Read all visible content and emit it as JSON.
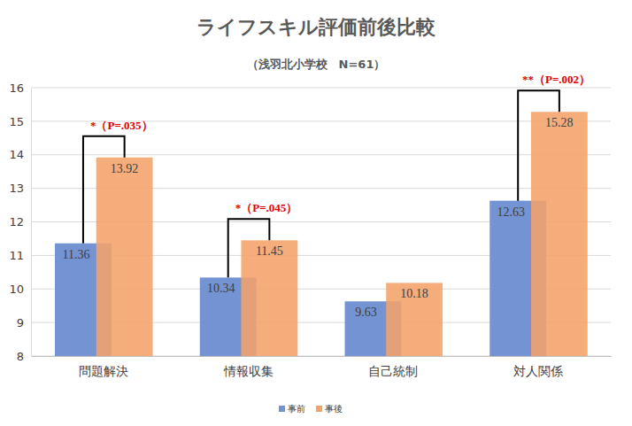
{
  "chart_data": {
    "type": "bar",
    "title": "ライフスキル評価前後比較",
    "subtitle": "（浅羽北小学校　N=61）",
    "categories": [
      "問題解決",
      "情報収集",
      "自己統制",
      "対人関係"
    ],
    "series": [
      {
        "name": "事前",
        "color": "#7393d3",
        "values": [
          11.36,
          10.34,
          9.63,
          12.63
        ]
      },
      {
        "name": "事後",
        "color": "#f4a26a",
        "values": [
          13.92,
          11.45,
          10.18,
          15.28
        ]
      }
    ],
    "ylim": [
      8,
      16
    ],
    "yticks": [
      8,
      9,
      10,
      11,
      12,
      13,
      14,
      15,
      16
    ],
    "grid": true,
    "data_labels": true,
    "legend": "bottom",
    "annotations": [
      {
        "category": "問題解決",
        "text": "*（P=.035）"
      },
      {
        "category": "情報収集",
        "text": "*（P=.045）"
      },
      {
        "category": "対人関係",
        "text": "**（P=.002）"
      }
    ]
  }
}
